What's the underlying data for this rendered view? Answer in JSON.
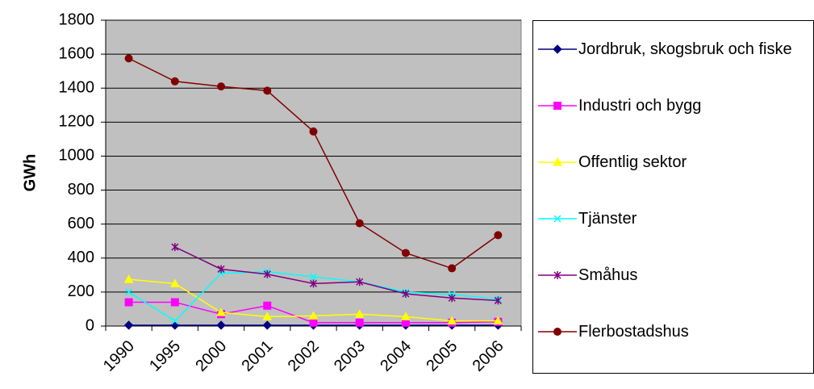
{
  "chart_data": {
    "type": "line",
    "y_label": "GWh",
    "categories": [
      "1990",
      "1995",
      "2000",
      "2001",
      "2002",
      "2003",
      "2004",
      "2005",
      "2006"
    ],
    "ylim": [
      0,
      1800
    ],
    "yticks": [
      0,
      200,
      400,
      600,
      800,
      1000,
      1200,
      1400,
      1600,
      1800
    ],
    "grid": true,
    "series": [
      {
        "name": "Jordbruk, skogsbruk och fiske",
        "color": "#000080",
        "marker": "diamond",
        "values": [
          5,
          5,
          5,
          5,
          5,
          5,
          5,
          5,
          5
        ]
      },
      {
        "name": "Industri och bygg",
        "color": "#FF00FF",
        "marker": "square",
        "values": [
          140,
          140,
          70,
          120,
          20,
          20,
          20,
          20,
          25
        ]
      },
      {
        "name": "Offentlig sektor",
        "color": "#FFFF00",
        "marker": "triangle",
        "values": [
          275,
          250,
          80,
          55,
          60,
          70,
          55,
          30,
          30
        ]
      },
      {
        "name": "Tjänster",
        "color": "#00FFFF",
        "marker": "x",
        "values": [
          200,
          30,
          310,
          320,
          290,
          260,
          200,
          185,
          160
        ]
      },
      {
        "name": "Småhus",
        "color": "#800080",
        "marker": "asterisk",
        "values": [
          null,
          465,
          335,
          305,
          250,
          260,
          190,
          165,
          150
        ]
      },
      {
        "name": "Flerbostadshus",
        "color": "#800000",
        "marker": "circle",
        "values": [
          1575,
          1440,
          1410,
          1385,
          1145,
          605,
          430,
          340,
          535
        ]
      }
    ]
  }
}
